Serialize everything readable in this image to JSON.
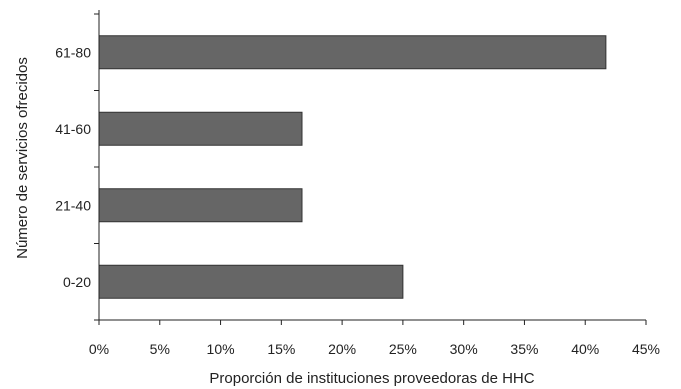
{
  "chart_data": {
    "type": "bar",
    "orientation": "horizontal",
    "categories": [
      "0-20",
      "21-40",
      "41-60",
      "61-80"
    ],
    "values": [
      25.0,
      16.7,
      16.7,
      41.7
    ],
    "xlabel": "Proporción de instituciones proveedoras de HHC",
    "ylabel": "Número de servicios ofrecidos",
    "xlim": [
      0,
      45
    ],
    "xticks": [
      0,
      5,
      10,
      15,
      20,
      25,
      30,
      35,
      40,
      45
    ],
    "xtick_labels": [
      "0%",
      "5%",
      "10%",
      "15%",
      "20%",
      "25%",
      "30%",
      "35%",
      "40%",
      "45%"
    ],
    "grid": false,
    "legend": "none",
    "bar_color": "#666666",
    "bar_edge_color": "#333333"
  }
}
